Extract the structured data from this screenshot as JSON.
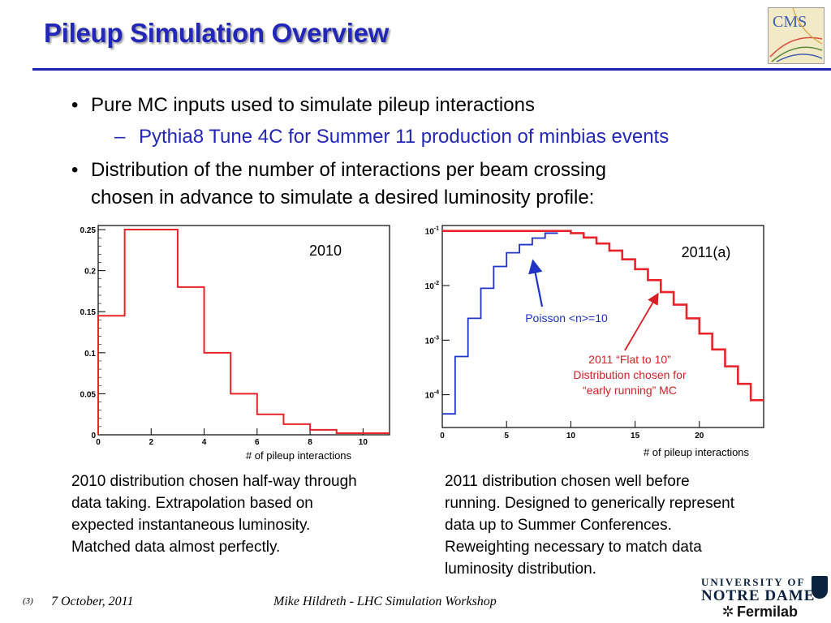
{
  "slide": {
    "title": "Pileup Simulation Overview",
    "logo_text": "CMS"
  },
  "bullets": [
    {
      "level": 1,
      "text": "Pure MC inputs used to simulate pileup interactions"
    },
    {
      "level": 2,
      "text": "Pythia8 Tune 4C for Summer 11 production of minbias events"
    },
    {
      "level": 1,
      "text": "Distribution of the number of interactions per beam crossing"
    },
    {
      "level": 1,
      "text": "chosen in advance to simulate a desired luminosity profile:"
    }
  ],
  "captions": {
    "left": [
      "2010 distribution chosen half-way through",
      "data taking.  Extrapolation based on",
      "expected instantaneous luminosity.",
      "Matched data almost perfectly."
    ],
    "right": [
      "2011 distribution chosen well before",
      "running.  Designed to generically represent",
      "data up to Summer Conferences.",
      "Reweighting necessary to match data",
      "luminosity distribution."
    ]
  },
  "footer": {
    "slide_number": "(3)",
    "date": "7 October, 2011",
    "author": "Mike Hildreth  - LHC Simulation Workshop",
    "institution_line1": "UNIVERSITY OF",
    "institution_line2": "NOTRE DAME",
    "institution_line3": "Fermilab"
  },
  "chart_data": [
    {
      "type": "bar",
      "label": "2010",
      "xlabel": "# of pileup interactions",
      "ylabel": "",
      "xlim": [
        0,
        11
      ],
      "ylim": [
        0,
        0.255
      ],
      "x_ticks": [
        0,
        2,
        4,
        6,
        8,
        10
      ],
      "y_ticks": [
        0,
        0.05,
        0.1,
        0.15,
        0.2,
        0.25
      ],
      "y_tick_labels": [
        "0",
        "0.05",
        "0.1",
        "0.15",
        "0.2",
        "0.25"
      ],
      "bin_edges": [
        0,
        1,
        2,
        3,
        4,
        5,
        6,
        7,
        8,
        9,
        10,
        11
      ],
      "values": [
        0.145,
        0.25,
        0.25,
        0.18,
        0.1,
        0.05,
        0.025,
        0.013,
        0.006,
        0.002,
        0.002
      ],
      "color": "#e8232a"
    },
    {
      "type": "line",
      "label": "2011(a)",
      "xlabel": "# of pileup interactions",
      "ylabel": "",
      "xlim": [
        0,
        25
      ],
      "ylim_log10": [
        -4.6,
        -0.9
      ],
      "log_y": true,
      "x_ticks": [
        0,
        5,
        10,
        15,
        20
      ],
      "y_ticks_log10": [
        -1,
        -2,
        -3,
        -4
      ],
      "series": [
        {
          "name": "Poisson <n>=10",
          "color": "#1f33c9",
          "bin_edges": [
            0,
            1,
            2,
            3,
            4,
            5,
            6,
            7,
            8,
            9
          ],
          "values_log10": [
            -4.35,
            -3.3,
            -2.6,
            -2.05,
            -1.65,
            -1.4,
            -1.25,
            -1.13,
            -1.04
          ]
        },
        {
          "name": "2011 “Flat to 10” Distribution chosen for “early running” MC",
          "color": "#e8232a",
          "bin_edges": [
            0,
            10,
            11,
            12,
            13,
            14,
            15,
            16,
            17,
            18,
            19,
            20,
            21,
            22,
            23,
            24,
            25
          ],
          "values_log10": [
            -1.0,
            -1.04,
            -1.12,
            -1.23,
            -1.36,
            -1.52,
            -1.7,
            -1.9,
            -2.12,
            -2.35,
            -2.6,
            -2.88,
            -3.17,
            -3.48,
            -3.8,
            -4.1
          ]
        }
      ],
      "annotations": [
        {
          "text": "Poisson <n>=10",
          "color": "#1f33c9"
        },
        {
          "lines": [
            "2011 “Flat to 10”",
            "Distribution chosen for",
            "“early running” MC"
          ],
          "color": "#d81f26"
        }
      ]
    }
  ]
}
